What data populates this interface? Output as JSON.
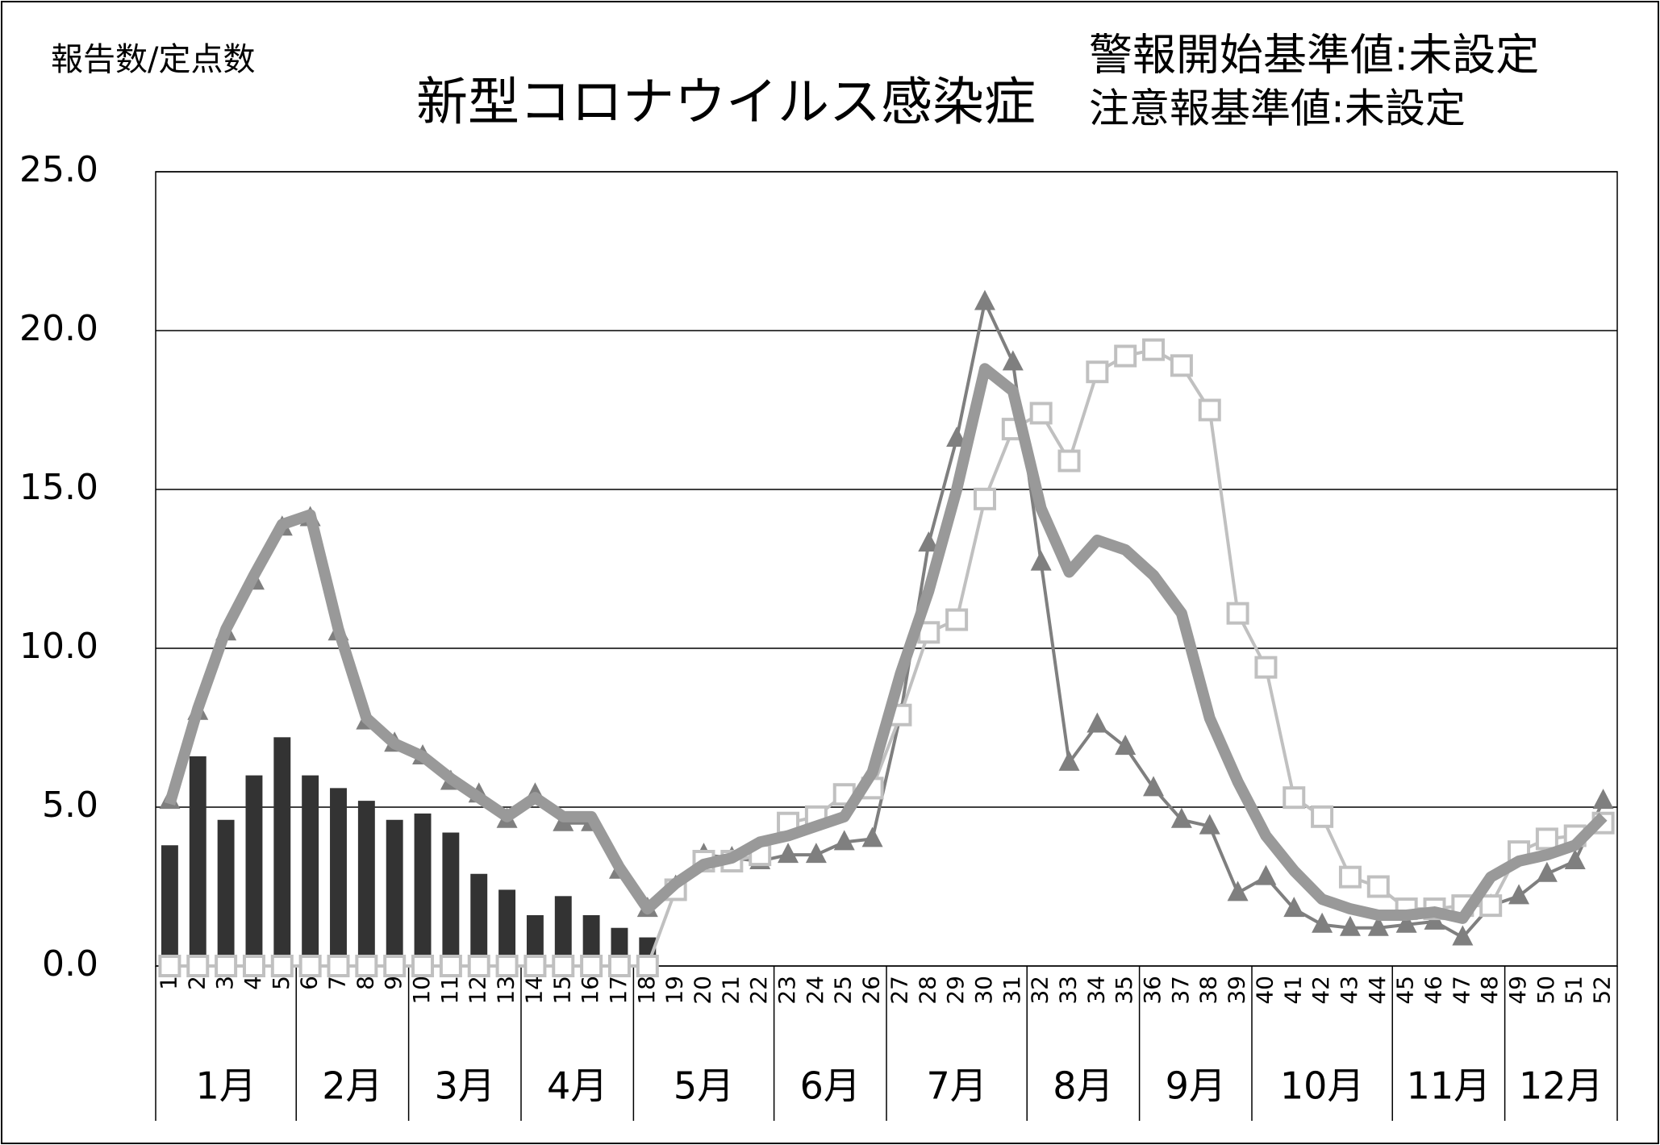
{
  "chart_data": {
    "type": "combo",
    "y_label": "報告数/定点数",
    "title": "新型コロナウイルス感染症",
    "annotations": [
      {
        "text": "警報開始基準値:未設定",
        "color": "#ff0000"
      },
      {
        "text": "注意報基準値:未設定",
        "color": "#000000"
      }
    ],
    "categories": [
      1,
      2,
      3,
      4,
      5,
      6,
      7,
      8,
      9,
      10,
      11,
      12,
      13,
      14,
      15,
      16,
      17,
      18,
      19,
      20,
      21,
      22,
      23,
      24,
      25,
      26,
      27,
      28,
      29,
      30,
      31,
      32,
      33,
      34,
      35,
      36,
      37,
      38,
      39,
      40,
      41,
      42,
      43,
      44,
      45,
      46,
      47,
      48,
      49,
      50,
      51,
      52
    ],
    "months": [
      "1月",
      "2月",
      "3月",
      "4月",
      "5月",
      "6月",
      "7月",
      "8月",
      "9月",
      "10月",
      "11月",
      "12月"
    ],
    "ylim": [
      0,
      25
    ],
    "yticks": [
      {
        "value": 0,
        "label": "0.0"
      },
      {
        "value": 5,
        "label": "5.0"
      },
      {
        "value": 10,
        "label": "10.0"
      },
      {
        "value": 15,
        "label": "15.0"
      },
      {
        "value": 20,
        "label": "20.0"
      },
      {
        "value": 25,
        "label": "25.0"
      }
    ],
    "grid": true,
    "series": [
      {
        "type": "bar",
        "color": "#333333",
        "values": [
          3.8,
          6.6,
          4.6,
          6.0,
          7.2,
          6.0,
          5.6,
          5.2,
          4.6,
          4.8,
          4.2,
          2.9,
          2.4,
          1.6,
          2.2,
          1.6,
          1.2,
          0.9,
          null,
          null,
          null,
          null,
          null,
          null,
          null,
          null,
          null,
          null,
          null,
          null,
          null,
          null,
          null,
          null,
          null,
          null,
          null,
          null,
          null,
          null,
          null,
          null,
          null,
          null,
          null,
          null,
          null,
          null,
          null,
          null,
          null,
          null
        ]
      },
      {
        "type": "line",
        "marker": "triangle",
        "color": "#7f7f7f",
        "values": [
          5.2,
          8.0,
          10.5,
          12.1,
          13.8,
          14.1,
          10.5,
          7.7,
          7.0,
          6.6,
          5.8,
          5.4,
          4.6,
          5.4,
          4.5,
          4.5,
          3.0,
          1.8,
          2.5,
          3.5,
          3.4,
          3.3,
          3.5,
          3.5,
          3.9,
          4.0,
          7.9,
          13.3,
          16.6,
          20.9,
          19.0,
          12.7,
          6.4,
          7.6,
          6.9,
          5.6,
          4.6,
          4.4,
          2.3,
          2.8,
          1.8,
          1.3,
          1.2,
          1.2,
          1.3,
          1.4,
          0.9,
          1.9,
          2.2,
          2.9,
          3.3,
          5.2
        ]
      },
      {
        "type": "line",
        "marker": "square",
        "color": "#c0c0c0",
        "values": [
          0,
          0,
          0,
          0,
          0,
          0,
          0,
          0,
          0,
          0,
          0,
          0,
          0,
          0,
          0,
          0,
          0,
          0,
          2.4,
          3.3,
          3.3,
          3.5,
          4.5,
          4.7,
          5.4,
          5.6,
          7.9,
          10.5,
          10.9,
          14.7,
          16.9,
          17.4,
          15.9,
          18.7,
          19.2,
          19.4,
          18.9,
          17.5,
          11.1,
          9.4,
          5.3,
          4.7,
          2.8,
          2.5,
          1.8,
          1.8,
          1.9,
          1.9,
          3.6,
          4.0,
          4.1,
          4.5
        ]
      },
      {
        "type": "line",
        "marker": "none",
        "color": "#999999",
        "width": 14,
        "values": [
          5.1,
          8.1,
          10.6,
          12.3,
          13.9,
          14.2,
          10.6,
          7.8,
          7.0,
          6.6,
          5.9,
          5.3,
          4.7,
          5.3,
          4.7,
          4.7,
          3.1,
          1.8,
          2.6,
          3.2,
          3.4,
          3.9,
          4.1,
          4.4,
          4.7,
          6.1,
          9.2,
          11.8,
          15.0,
          18.8,
          18.1,
          14.4,
          12.4,
          13.4,
          13.1,
          12.3,
          11.1,
          7.8,
          5.8,
          4.1,
          3.0,
          2.1,
          1.8,
          1.6,
          1.6,
          1.7,
          1.5,
          2.8,
          3.3,
          3.5,
          3.8,
          4.7
        ]
      }
    ]
  }
}
